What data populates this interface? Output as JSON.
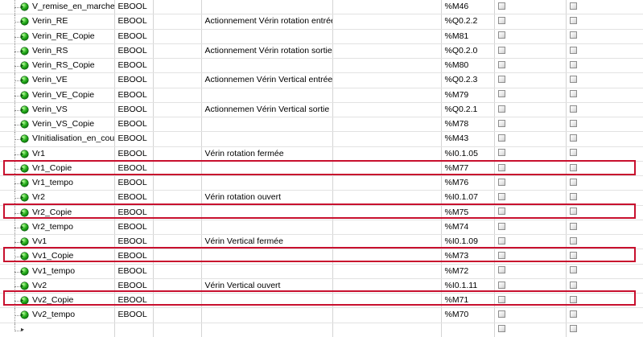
{
  "accent_color": "#c8102e",
  "icons": {
    "variable": "green-ball-arrow-icon",
    "new_row": "arrow-right-icon",
    "checkbox": "checkbox-icon"
  },
  "rows": [
    {
      "name": "V_remise_en_marche",
      "type": "EBOOL",
      "comment": "",
      "address": "%M46",
      "highlighted": false
    },
    {
      "name": "Verin_RE",
      "type": "EBOOL",
      "comment": "Actionnement Vérin rotation entrée",
      "address": "%Q0.2.2",
      "highlighted": false
    },
    {
      "name": "Verin_RE_Copie",
      "type": "EBOOL",
      "comment": "",
      "address": "%M81",
      "highlighted": false
    },
    {
      "name": "Verin_RS",
      "type": "EBOOL",
      "comment": "Actionnement Vérin rotation sortie",
      "address": "%Q0.2.0",
      "highlighted": false
    },
    {
      "name": "Verin_RS_Copie",
      "type": "EBOOL",
      "comment": "",
      "address": "%M80",
      "highlighted": false
    },
    {
      "name": "Verin_VE",
      "type": "EBOOL",
      "comment": "Actionnemen Vérin Vertical entrée",
      "address": "%Q0.2.3",
      "highlighted": false
    },
    {
      "name": "Verin_VE_Copie",
      "type": "EBOOL",
      "comment": "",
      "address": "%M79",
      "highlighted": false
    },
    {
      "name": "Verin_VS",
      "type": "EBOOL",
      "comment": "Actionnemen Vérin Vertical sortie",
      "address": "%Q0.2.1",
      "highlighted": false
    },
    {
      "name": "Verin_VS_Copie",
      "type": "EBOOL",
      "comment": "",
      "address": "%M78",
      "highlighted": false
    },
    {
      "name": "VInitialisation_en_cours",
      "type": "EBOOL",
      "comment": "",
      "address": "%M43",
      "highlighted": false
    },
    {
      "name": "Vr1",
      "type": "EBOOL",
      "comment": "Vérin rotation fermée",
      "address": "%I0.1.05",
      "highlighted": false
    },
    {
      "name": "Vr1_Copie",
      "type": "EBOOL",
      "comment": "",
      "address": "%M77",
      "highlighted": true
    },
    {
      "name": "Vr1_tempo",
      "type": "EBOOL",
      "comment": "",
      "address": "%M76",
      "highlighted": false
    },
    {
      "name": "Vr2",
      "type": "EBOOL",
      "comment": "Vérin rotation ouvert",
      "address": "%I0.1.07",
      "highlighted": false
    },
    {
      "name": "Vr2_Copie",
      "type": "EBOOL",
      "comment": "",
      "address": "%M75",
      "highlighted": true
    },
    {
      "name": "Vr2_tempo",
      "type": "EBOOL",
      "comment": "",
      "address": "%M74",
      "highlighted": false
    },
    {
      "name": "Vv1",
      "type": "EBOOL",
      "comment": "Vérin Vertical fermée",
      "address": "%I0.1.09",
      "highlighted": false
    },
    {
      "name": "Vv1_Copie",
      "type": "EBOOL",
      "comment": "",
      "address": "%M73",
      "highlighted": true
    },
    {
      "name": "Vv1_tempo",
      "type": "EBOOL",
      "comment": "",
      "address": "%M72",
      "highlighted": false
    },
    {
      "name": "Vv2",
      "type": "EBOOL",
      "comment": "Vérin Vertical ouvert",
      "address": "%I0.1.11",
      "highlighted": false
    },
    {
      "name": "Vv2_Copie",
      "type": "EBOOL",
      "comment": "",
      "address": "%M71",
      "highlighted": true
    },
    {
      "name": "Vv2_tempo",
      "type": "EBOOL",
      "comment": "",
      "address": "%M70",
      "highlighted": false
    }
  ]
}
